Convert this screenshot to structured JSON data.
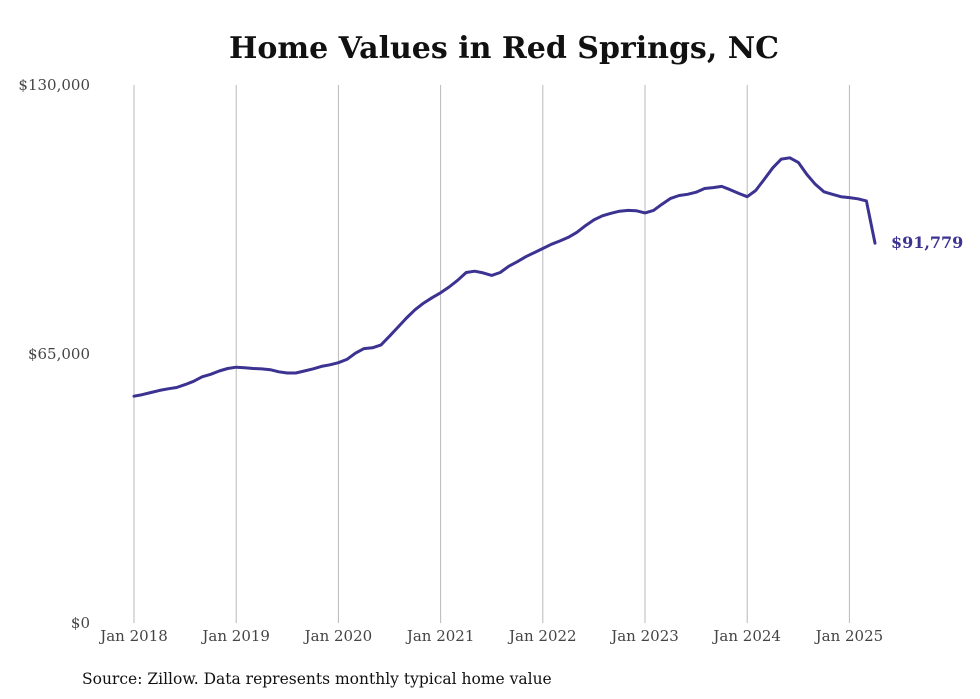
{
  "chart_data": {
    "type": "line",
    "title": "Home Values in Red Springs, NC",
    "xlabel": "",
    "ylabel": "",
    "ylim": [
      0,
      130000
    ],
    "y_ticks": [
      "$0",
      "$65,000",
      "$130,000"
    ],
    "y_tick_values": [
      0,
      65000,
      130000
    ],
    "x_ticks": [
      "Jan 2018",
      "Jan 2019",
      "Jan 2020",
      "Jan 2021",
      "Jan 2022",
      "Jan 2023",
      "Jan 2024",
      "Jan 2025"
    ],
    "x_tick_values": [
      "2018-01",
      "2019-01",
      "2020-01",
      "2021-01",
      "2022-01",
      "2023-01",
      "2024-01",
      "2025-01"
    ],
    "xlim": [
      "2018-01",
      "2025-04"
    ],
    "grid": "vertical",
    "end_label": "$91,779",
    "source": "Source: Zillow. Data represents monthly typical home value",
    "series": [
      {
        "color": "#3b3291",
        "points": [
          [
            "2018-01",
            54800
          ],
          [
            "2018-02",
            55200
          ],
          [
            "2018-03",
            55700
          ],
          [
            "2018-04",
            56200
          ],
          [
            "2018-05",
            56600
          ],
          [
            "2018-06",
            56900
          ],
          [
            "2018-07",
            57600
          ],
          [
            "2018-08",
            58400
          ],
          [
            "2018-09",
            59500
          ],
          [
            "2018-10",
            60100
          ],
          [
            "2018-11",
            60900
          ],
          [
            "2018-12",
            61500
          ],
          [
            "2019-01",
            61800
          ],
          [
            "2019-02",
            61700
          ],
          [
            "2019-03",
            61500
          ],
          [
            "2019-04",
            61400
          ],
          [
            "2019-05",
            61200
          ],
          [
            "2019-06",
            60700
          ],
          [
            "2019-07",
            60400
          ],
          [
            "2019-08",
            60400
          ],
          [
            "2019-09",
            60900
          ],
          [
            "2019-10",
            61400
          ],
          [
            "2019-11",
            62000
          ],
          [
            "2019-12",
            62400
          ],
          [
            "2020-01",
            62900
          ],
          [
            "2020-02",
            63700
          ],
          [
            "2020-03",
            65200
          ],
          [
            "2020-04",
            66300
          ],
          [
            "2020-05",
            66500
          ],
          [
            "2020-06",
            67200
          ],
          [
            "2020-07",
            69300
          ],
          [
            "2020-08",
            71500
          ],
          [
            "2020-09",
            73700
          ],
          [
            "2020-10",
            75700
          ],
          [
            "2020-11",
            77300
          ],
          [
            "2020-12",
            78600
          ],
          [
            "2021-01",
            79800
          ],
          [
            "2021-02",
            81200
          ],
          [
            "2021-03",
            82800
          ],
          [
            "2021-04",
            84700
          ],
          [
            "2021-05",
            85000
          ],
          [
            "2021-06",
            84600
          ],
          [
            "2021-07",
            84000
          ],
          [
            "2021-08",
            84700
          ],
          [
            "2021-09",
            86200
          ],
          [
            "2021-10",
            87300
          ],
          [
            "2021-11",
            88500
          ],
          [
            "2021-12",
            89500
          ],
          [
            "2022-01",
            90500
          ],
          [
            "2022-02",
            91500
          ],
          [
            "2022-03",
            92300
          ],
          [
            "2022-04",
            93200
          ],
          [
            "2022-05",
            94400
          ],
          [
            "2022-06",
            96000
          ],
          [
            "2022-07",
            97400
          ],
          [
            "2022-08",
            98400
          ],
          [
            "2022-09",
            99000
          ],
          [
            "2022-10",
            99500
          ],
          [
            "2022-11",
            99700
          ],
          [
            "2022-12",
            99600
          ],
          [
            "2023-01",
            99100
          ],
          [
            "2023-02",
            99700
          ],
          [
            "2023-03",
            101200
          ],
          [
            "2023-04",
            102600
          ],
          [
            "2023-05",
            103300
          ],
          [
            "2023-06",
            103600
          ],
          [
            "2023-07",
            104100
          ],
          [
            "2023-08",
            105000
          ],
          [
            "2023-09",
            105200
          ],
          [
            "2023-10",
            105500
          ],
          [
            "2023-11",
            104700
          ],
          [
            "2023-12",
            103800
          ],
          [
            "2024-01",
            103000
          ],
          [
            "2024-02",
            104500
          ],
          [
            "2024-03",
            107200
          ],
          [
            "2024-04",
            110000
          ],
          [
            "2024-05",
            112100
          ],
          [
            "2024-06",
            112400
          ],
          [
            "2024-07",
            111300
          ],
          [
            "2024-08",
            108400
          ],
          [
            "2024-09",
            106000
          ],
          [
            "2024-10",
            104200
          ],
          [
            "2024-11",
            103600
          ],
          [
            "2024-12",
            103000
          ],
          [
            "2025-01",
            102800
          ],
          [
            "2025-02",
            102500
          ],
          [
            "2025-03",
            102000
          ],
          [
            "2025-04",
            91779
          ]
        ]
      }
    ]
  }
}
